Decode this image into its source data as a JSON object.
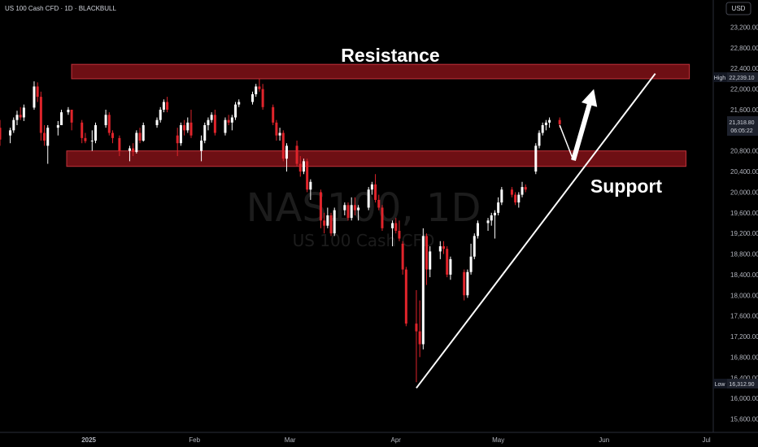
{
  "header": {
    "title": "US 100 Cash CFD · 1D · BLACKBULL",
    "currency": "USD"
  },
  "watermark": {
    "symbol": "NAS100, 1D",
    "description": "US 100 Cash CFD"
  },
  "annotations": {
    "resistance": "Resistance",
    "support": "Support"
  },
  "price_tags": {
    "high_label": "High",
    "high_value": "22,239.10",
    "last_value": "21,318.80",
    "countdown": "06:05:22",
    "low_label": "Low",
    "low_value": "16,312.90"
  },
  "colors": {
    "background": "#000000",
    "bull_candle": "#ffffff",
    "bear_candle": "#e0242b",
    "zone_fill": "#7a1116",
    "zone_border": "#c2323a",
    "trendline": "#ffffff"
  },
  "chart_data": {
    "type": "candlestick",
    "interval": "1D",
    "y_axis": {
      "min": 15400,
      "max": 23500,
      "ticks": [
        15600,
        16000,
        16400,
        16800,
        17200,
        17600,
        18000,
        18400,
        18800,
        19200,
        19600,
        20000,
        20400,
        20800,
        21200,
        21600,
        22000,
        22400,
        22800,
        23200
      ],
      "tick_labels": [
        "15,600.00",
        "16,000.00",
        "16,400.00",
        "16,800.00",
        "17,200.00",
        "17,600.00",
        "18,000.00",
        "18,400.00",
        "18,800.00",
        "19,200.00",
        "19,600.00",
        "20,000.00",
        "20,400.00",
        "20,800.00",
        "21,200.00",
        "21,600.00",
        "22,000.00",
        "22,400.00",
        "22,800.00",
        "23,200.00"
      ]
    },
    "x_axis": {
      "start": "2024-12-06",
      "end": "2025-07-03",
      "tick_dates": [
        "2025-01-01",
        "2025-02-01",
        "2025-03-01",
        "2025-04-01",
        "2025-05-01",
        "2025-06-01",
        "2025-07-01"
      ],
      "tick_labels": [
        "2025",
        "Feb",
        "Mar",
        "Apr",
        "May",
        "Jun",
        "Jul"
      ]
    },
    "zones": [
      {
        "name": "Resistance",
        "from_date": "2024-12-06",
        "to_date": "2025-06-26",
        "low": 22200,
        "high": 22480
      },
      {
        "name": "Support",
        "from_date": "2024-12-06",
        "to_date": "2025-06-25",
        "low": 20500,
        "high": 20800
      }
    ],
    "trendline": {
      "from": {
        "date": "2025-04-07",
        "price": 16200
      },
      "to": {
        "date": "2025-06-16",
        "price": 22300
      }
    },
    "projection": [
      {
        "date": "2025-05-19",
        "price": 21300
      },
      {
        "date": "2025-05-23",
        "price": 20620
      },
      {
        "date": "2025-05-29",
        "price": 22000
      }
    ],
    "candles": [
      {
        "date": "2024-12-06",
        "o": 21250,
        "h": 21400,
        "l": 20900,
        "c": 21020
      },
      {
        "date": "2024-12-09",
        "o": 21100,
        "h": 21250,
        "l": 20950,
        "c": 21200
      },
      {
        "date": "2024-12-10",
        "o": 21200,
        "h": 21450,
        "l": 21150,
        "c": 21400
      },
      {
        "date": "2024-12-11",
        "o": 21400,
        "h": 21580,
        "l": 21300,
        "c": 21500
      },
      {
        "date": "2024-12-12",
        "o": 21500,
        "h": 21650,
        "l": 21400,
        "c": 21450
      },
      {
        "date": "2024-12-13",
        "o": 21450,
        "h": 21700,
        "l": 21380,
        "c": 21640
      },
      {
        "date": "2024-12-16",
        "o": 21640,
        "h": 22150,
        "l": 21600,
        "c": 22050
      },
      {
        "date": "2024-12-17",
        "o": 22050,
        "h": 22130,
        "l": 21750,
        "c": 21850
      },
      {
        "date": "2024-12-18",
        "o": 21850,
        "h": 21950,
        "l": 21000,
        "c": 21150
      },
      {
        "date": "2024-12-19",
        "o": 21150,
        "h": 21300,
        "l": 20900,
        "c": 21000
      },
      {
        "date": "2024-12-20",
        "o": 20900,
        "h": 21300,
        "l": 20550,
        "c": 21250
      },
      {
        "date": "2024-12-23",
        "o": 21250,
        "h": 21380,
        "l": 21100,
        "c": 21300
      },
      {
        "date": "2024-12-24",
        "o": 21300,
        "h": 21600,
        "l": 21300,
        "c": 21550
      },
      {
        "date": "2024-12-26",
        "o": 21550,
        "h": 21650,
        "l": 21500,
        "c": 21600
      },
      {
        "date": "2024-12-27",
        "o": 21600,
        "h": 21600,
        "l": 21200,
        "c": 21350
      },
      {
        "date": "2024-12-30",
        "o": 21350,
        "h": 21400,
        "l": 20950,
        "c": 21050
      },
      {
        "date": "2024-12-31",
        "o": 21050,
        "h": 21150,
        "l": 20950,
        "c": 20990
      },
      {
        "date": "2025-01-02",
        "o": 21000,
        "h": 21200,
        "l": 20800,
        "c": 21000
      },
      {
        "date": "2025-01-03",
        "o": 21000,
        "h": 21350,
        "l": 20950,
        "c": 21300
      },
      {
        "date": "2025-01-06",
        "o": 21300,
        "h": 21600,
        "l": 21250,
        "c": 21500
      },
      {
        "date": "2025-01-07",
        "o": 21500,
        "h": 21550,
        "l": 21100,
        "c": 21150
      },
      {
        "date": "2025-01-08",
        "o": 21150,
        "h": 21200,
        "l": 20950,
        "c": 21050
      },
      {
        "date": "2025-01-10",
        "o": 21050,
        "h": 21100,
        "l": 20700,
        "c": 20800
      },
      {
        "date": "2025-01-13",
        "o": 20800,
        "h": 20900,
        "l": 20600,
        "c": 20850
      },
      {
        "date": "2025-01-14",
        "o": 20850,
        "h": 20950,
        "l": 20700,
        "c": 20780
      },
      {
        "date": "2025-01-15",
        "o": 20780,
        "h": 21200,
        "l": 20750,
        "c": 21150
      },
      {
        "date": "2025-01-16",
        "o": 21150,
        "h": 21250,
        "l": 20950,
        "c": 21000
      },
      {
        "date": "2025-01-17",
        "o": 21000,
        "h": 21350,
        "l": 20980,
        "c": 21300
      },
      {
        "date": "2025-01-21",
        "o": 21300,
        "h": 21450,
        "l": 21250,
        "c": 21400
      },
      {
        "date": "2025-01-22",
        "o": 21400,
        "h": 21650,
        "l": 21350,
        "c": 21600
      },
      {
        "date": "2025-01-23",
        "o": 21600,
        "h": 21800,
        "l": 21550,
        "c": 21750
      },
      {
        "date": "2025-01-24",
        "o": 21750,
        "h": 21850,
        "l": 21550,
        "c": 21600
      },
      {
        "date": "2025-01-27",
        "o": 21100,
        "h": 21250,
        "l": 20700,
        "c": 20950
      },
      {
        "date": "2025-01-28",
        "o": 20950,
        "h": 21350,
        "l": 20900,
        "c": 21300
      },
      {
        "date": "2025-01-29",
        "o": 21300,
        "h": 21400,
        "l": 21100,
        "c": 21200
      },
      {
        "date": "2025-01-30",
        "o": 21200,
        "h": 21450,
        "l": 21150,
        "c": 21350
      },
      {
        "date": "2025-01-31",
        "o": 21350,
        "h": 21600,
        "l": 21050,
        "c": 21100
      },
      {
        "date": "2025-02-03",
        "o": 20800,
        "h": 21100,
        "l": 20600,
        "c": 21000
      },
      {
        "date": "2025-02-04",
        "o": 21000,
        "h": 21350,
        "l": 20950,
        "c": 21300
      },
      {
        "date": "2025-02-05",
        "o": 21300,
        "h": 21450,
        "l": 21200,
        "c": 21400
      },
      {
        "date": "2025-02-06",
        "o": 21400,
        "h": 21550,
        "l": 21350,
        "c": 21500
      },
      {
        "date": "2025-02-07",
        "o": 21500,
        "h": 21600,
        "l": 21100,
        "c": 21150
      },
      {
        "date": "2025-02-10",
        "o": 21150,
        "h": 21450,
        "l": 21100,
        "c": 21400
      },
      {
        "date": "2025-02-11",
        "o": 21400,
        "h": 21500,
        "l": 21300,
        "c": 21350
      },
      {
        "date": "2025-02-12",
        "o": 21350,
        "h": 21500,
        "l": 21200,
        "c": 21450
      },
      {
        "date": "2025-02-13",
        "o": 21450,
        "h": 21750,
        "l": 21400,
        "c": 21700
      },
      {
        "date": "2025-02-14",
        "o": 21700,
        "h": 21800,
        "l": 21650,
        "c": 21750
      },
      {
        "date": "2025-02-18",
        "o": 21750,
        "h": 21950,
        "l": 21700,
        "c": 21900
      },
      {
        "date": "2025-02-19",
        "o": 21900,
        "h": 22100,
        "l": 21850,
        "c": 22050
      },
      {
        "date": "2025-02-20",
        "o": 22050,
        "h": 22200,
        "l": 21950,
        "c": 22000
      },
      {
        "date": "2025-02-21",
        "o": 22000,
        "h": 22100,
        "l": 21600,
        "c": 21650
      },
      {
        "date": "2025-02-24",
        "o": 21650,
        "h": 21700,
        "l": 21300,
        "c": 21350
      },
      {
        "date": "2025-02-25",
        "o": 21350,
        "h": 21400,
        "l": 21000,
        "c": 21100
      },
      {
        "date": "2025-02-26",
        "o": 21100,
        "h": 21250,
        "l": 21000,
        "c": 21150
      },
      {
        "date": "2025-02-27",
        "o": 21150,
        "h": 21200,
        "l": 20600,
        "c": 20650
      },
      {
        "date": "2025-02-28",
        "o": 20650,
        "h": 20950,
        "l": 20400,
        "c": 20900
      },
      {
        "date": "2025-03-03",
        "o": 20900,
        "h": 21000,
        "l": 20500,
        "c": 20550
      },
      {
        "date": "2025-03-04",
        "o": 20550,
        "h": 20700,
        "l": 20300,
        "c": 20400
      },
      {
        "date": "2025-03-05",
        "o": 20400,
        "h": 20650,
        "l": 20350,
        "c": 20600
      },
      {
        "date": "2025-03-06",
        "o": 20600,
        "h": 20650,
        "l": 20000,
        "c": 20050
      },
      {
        "date": "2025-03-07",
        "o": 20050,
        "h": 20250,
        "l": 19850,
        "c": 20200
      },
      {
        "date": "2025-03-10",
        "o": 20000,
        "h": 20050,
        "l": 19300,
        "c": 19450
      },
      {
        "date": "2025-03-11",
        "o": 19450,
        "h": 19600,
        "l": 19200,
        "c": 19350
      },
      {
        "date": "2025-03-12",
        "o": 19350,
        "h": 19700,
        "l": 19300,
        "c": 19550
      },
      {
        "date": "2025-03-13",
        "o": 19550,
        "h": 19600,
        "l": 19150,
        "c": 19200
      },
      {
        "date": "2025-03-14",
        "o": 19200,
        "h": 19700,
        "l": 19150,
        "c": 19650
      },
      {
        "date": "2025-03-17",
        "o": 19650,
        "h": 19800,
        "l": 19550,
        "c": 19750
      },
      {
        "date": "2025-03-18",
        "o": 19750,
        "h": 19800,
        "l": 19450,
        "c": 19500
      },
      {
        "date": "2025-03-19",
        "o": 19500,
        "h": 19900,
        "l": 19450,
        "c": 19750
      },
      {
        "date": "2025-03-20",
        "o": 19750,
        "h": 19900,
        "l": 19550,
        "c": 19650
      },
      {
        "date": "2025-03-21",
        "o": 19650,
        "h": 19750,
        "l": 19450,
        "c": 19700
      },
      {
        "date": "2025-03-24",
        "o": 19700,
        "h": 20100,
        "l": 19650,
        "c": 20050
      },
      {
        "date": "2025-03-25",
        "o": 20050,
        "h": 20200,
        "l": 19950,
        "c": 20150
      },
      {
        "date": "2025-03-26",
        "o": 20150,
        "h": 20350,
        "l": 19800,
        "c": 19850
      },
      {
        "date": "2025-03-27",
        "o": 19850,
        "h": 19950,
        "l": 19650,
        "c": 19700
      },
      {
        "date": "2025-03-28",
        "o": 19700,
        "h": 19750,
        "l": 19250,
        "c": 19300
      },
      {
        "date": "2025-03-31",
        "o": 19300,
        "h": 19450,
        "l": 18950,
        "c": 19400
      },
      {
        "date": "2025-04-01",
        "o": 19400,
        "h": 19500,
        "l": 19200,
        "c": 19250
      },
      {
        "date": "2025-04-02",
        "o": 19250,
        "h": 19450,
        "l": 19050,
        "c": 19100
      },
      {
        "date": "2025-04-03",
        "o": 19000,
        "h": 19050,
        "l": 18400,
        "c": 18500
      },
      {
        "date": "2025-04-04",
        "o": 18500,
        "h": 18550,
        "l": 17400,
        "c": 17450
      },
      {
        "date": "2025-04-07",
        "o": 17450,
        "h": 18100,
        "l": 16312.9,
        "c": 17300
      },
      {
        "date": "2025-04-08",
        "o": 17300,
        "h": 17900,
        "l": 16800,
        "c": 17050
      },
      {
        "date": "2025-04-09",
        "o": 17050,
        "h": 19300,
        "l": 16950,
        "c": 19150
      },
      {
        "date": "2025-04-10",
        "o": 19150,
        "h": 19200,
        "l": 18200,
        "c": 18500
      },
      {
        "date": "2025-04-11",
        "o": 18500,
        "h": 18950,
        "l": 18350,
        "c": 18850
      },
      {
        "date": "2025-04-14",
        "o": 18850,
        "h": 19050,
        "l": 18700,
        "c": 18950
      },
      {
        "date": "2025-04-15",
        "o": 18950,
        "h": 19050,
        "l": 18800,
        "c": 18900
      },
      {
        "date": "2025-04-16",
        "o": 18900,
        "h": 18950,
        "l": 18350,
        "c": 18400
      },
      {
        "date": "2025-04-17",
        "o": 18400,
        "h": 18750,
        "l": 18300,
        "c": 18700
      },
      {
        "date": "2025-04-21",
        "o": 18450,
        "h": 18500,
        "l": 17900,
        "c": 18000
      },
      {
        "date": "2025-04-22",
        "o": 18000,
        "h": 18500,
        "l": 17950,
        "c": 18450
      },
      {
        "date": "2025-04-23",
        "o": 18450,
        "h": 19000,
        "l": 18400,
        "c": 18750
      },
      {
        "date": "2025-04-24",
        "o": 18750,
        "h": 19200,
        "l": 18700,
        "c": 19150
      },
      {
        "date": "2025-04-25",
        "o": 19150,
        "h": 19450,
        "l": 19100,
        "c": 19400
      },
      {
        "date": "2025-04-28",
        "o": 19400,
        "h": 19500,
        "l": 19250,
        "c": 19450
      },
      {
        "date": "2025-04-29",
        "o": 19450,
        "h": 19600,
        "l": 19350,
        "c": 19550
      },
      {
        "date": "2025-04-30",
        "o": 19550,
        "h": 19650,
        "l": 19100,
        "c": 19600
      },
      {
        "date": "2025-05-01",
        "o": 19600,
        "h": 19900,
        "l": 19550,
        "c": 19800
      },
      {
        "date": "2025-05-02",
        "o": 19800,
        "h": 20100,
        "l": 19750,
        "c": 20050
      },
      {
        "date": "2025-05-05",
        "o": 20050,
        "h": 20100,
        "l": 19900,
        "c": 19950
      },
      {
        "date": "2025-05-06",
        "o": 19950,
        "h": 20000,
        "l": 19750,
        "c": 19800
      },
      {
        "date": "2025-05-07",
        "o": 19800,
        "h": 20000,
        "l": 19700,
        "c": 19950
      },
      {
        "date": "2025-05-08",
        "o": 19950,
        "h": 20200,
        "l": 19900,
        "c": 20100
      },
      {
        "date": "2025-05-09",
        "o": 20100,
        "h": 20150,
        "l": 20000,
        "c": 20050
      },
      {
        "date": "2025-05-12",
        "o": 20400,
        "h": 20950,
        "l": 20350,
        "c": 20900
      },
      {
        "date": "2025-05-13",
        "o": 20900,
        "h": 21200,
        "l": 20850,
        "c": 21150
      },
      {
        "date": "2025-05-14",
        "o": 21150,
        "h": 21350,
        "l": 21100,
        "c": 21300
      },
      {
        "date": "2025-05-15",
        "o": 21300,
        "h": 21400,
        "l": 21200,
        "c": 21350
      },
      {
        "date": "2025-05-16",
        "o": 21350,
        "h": 21450,
        "l": 21250,
        "c": 21400
      },
      {
        "date": "2025-05-19",
        "o": 21400,
        "h": 21450,
        "l": 21250,
        "c": 21318.8
      }
    ]
  }
}
